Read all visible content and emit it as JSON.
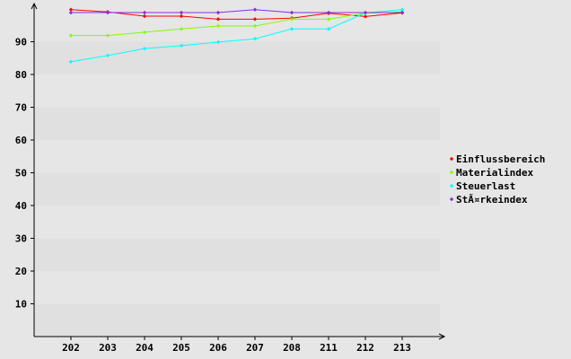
{
  "chart_data": {
    "type": "line",
    "title": "",
    "xlabel": "",
    "ylabel": "",
    "categories": [
      "202",
      "203",
      "204",
      "205",
      "206",
      "207",
      "208",
      "211",
      "212",
      "213"
    ],
    "ylim": [
      0,
      100
    ],
    "yticks": [
      10,
      20,
      30,
      40,
      50,
      60,
      70,
      80,
      90
    ],
    "grid": "alternating horizontal bands",
    "legend_position": "right",
    "series": [
      {
        "name": "Einflussbereich",
        "color": "#ff0000",
        "values": [
          99.8,
          99.1,
          97.8,
          97.8,
          96.9,
          96.9,
          97.2,
          98.7,
          97.7,
          98.8
        ]
      },
      {
        "name": "Materialindex",
        "color": "#7fff00",
        "values": [
          91.9,
          91.9,
          92.9,
          93.9,
          94.8,
          94.8,
          96.9,
          96.9,
          98.7,
          99.1
        ]
      },
      {
        "name": "Steuerlast",
        "color": "#00ffff",
        "values": [
          83.9,
          85.8,
          87.9,
          88.8,
          89.9,
          90.9,
          93.9,
          93.9,
          98.8,
          99.8
        ]
      },
      {
        "name": "StÃ¤rkeindex",
        "color": "#8a2be2",
        "values": [
          98.9,
          98.9,
          98.9,
          98.9,
          98.9,
          99.8,
          98.9,
          98.9,
          98.9,
          98.9
        ]
      }
    ]
  }
}
